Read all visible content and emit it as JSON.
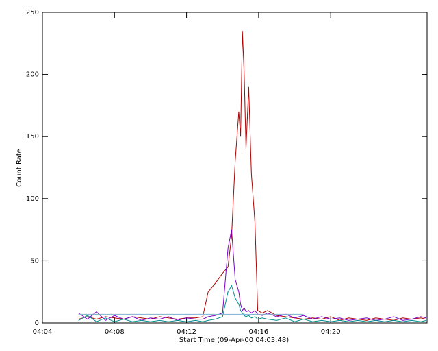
{
  "chart_data": {
    "type": "line",
    "x_label": "Start Time (09-Apr-00 04:03:48)",
    "y_label": "Count Rate",
    "x": [
      6,
      6.5,
      7,
      7.5,
      8,
      8.5,
      9,
      9.5,
      10,
      10.5,
      11,
      11.5,
      12,
      12.5,
      12.9,
      13.2,
      13.6,
      14,
      14.3,
      14.5,
      14.7,
      14.9,
      15.0,
      15.1,
      15.2,
      15.3,
      15.45,
      15.6,
      15.8,
      15.95,
      16.2,
      16.5,
      17,
      17.5,
      18,
      18.5,
      19,
      19.5,
      20,
      20.5,
      21,
      21.5,
      22,
      22.5,
      23,
      23.5,
      24,
      24.5,
      25,
      25.3
    ],
    "series": [
      {
        "name": "red",
        "color": "#b00000",
        "values": [
          3,
          5,
          3,
          5,
          4,
          3,
          5,
          4,
          3,
          5,
          4,
          3,
          4,
          4,
          5,
          25,
          32,
          40,
          45,
          70,
          130,
          170,
          150,
          235,
          200,
          140,
          190,
          120,
          80,
          10,
          8,
          10,
          6,
          5,
          4,
          3,
          4,
          3,
          5,
          2,
          4,
          3,
          2,
          4,
          3,
          2,
          4,
          3,
          4,
          3
        ]
      },
      {
        "name": "purple",
        "color": "#7a00c8",
        "values": [
          8,
          3,
          9,
          2,
          6,
          3,
          5,
          2,
          4,
          3,
          5,
          2,
          4,
          3,
          3,
          5,
          6,
          8,
          60,
          75,
          35,
          25,
          15,
          10,
          12,
          9,
          10,
          8,
          10,
          7,
          6,
          8,
          5,
          7,
          4,
          6,
          3,
          5,
          3,
          4,
          2,
          3,
          4,
          2,
          3,
          5,
          2,
          3,
          5,
          4
        ]
      },
      {
        "name": "teal",
        "color": "#008c8c",
        "values": [
          2,
          6,
          1,
          4,
          1,
          3,
          1,
          2,
          1,
          2,
          1,
          2,
          1,
          2,
          1,
          2,
          3,
          5,
          25,
          30,
          20,
          15,
          10,
          8,
          6,
          5,
          6,
          4,
          5,
          3,
          4,
          3,
          2,
          4,
          1,
          3,
          1,
          2,
          1,
          2,
          1,
          2,
          1,
          2,
          1,
          2,
          1,
          2,
          1,
          2
        ]
      },
      {
        "name": "light-blue",
        "color": "#7fb0d0",
        "values": [
          7,
          7,
          7,
          7,
          7,
          7,
          7,
          7,
          7,
          7,
          7,
          7,
          7,
          7,
          7,
          7,
          7,
          7,
          7,
          7,
          7,
          7,
          7,
          7,
          7,
          7,
          7,
          7,
          7,
          7,
          7,
          7,
          7,
          7,
          7,
          7,
          null,
          null,
          null,
          null,
          null,
          null,
          null,
          null,
          null,
          null,
          null,
          null,
          null,
          null
        ]
      }
    ],
    "xlim": [
      4,
      25.35
    ],
    "xticks": [
      {
        "value": 4,
        "label": "04:04"
      },
      {
        "value": 8,
        "label": "04:08"
      },
      {
        "value": 12,
        "label": "04:12"
      },
      {
        "value": 16,
        "label": "04:16"
      },
      {
        "value": 20,
        "label": "04:20"
      }
    ],
    "ylim": [
      0,
      250
    ],
    "yticks": [
      0,
      50,
      100,
      150,
      200,
      250
    ]
  }
}
